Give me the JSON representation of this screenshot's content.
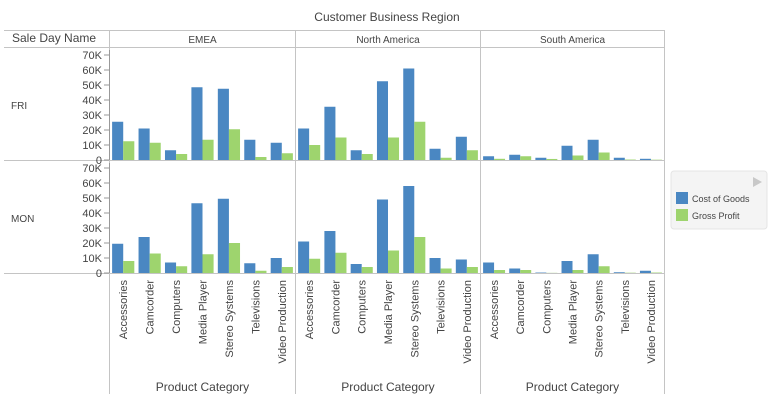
{
  "chart_data": {
    "type": "bar",
    "title": "Customer Business Region",
    "row_header": "Sale Day Name",
    "xlabel": "Product Category",
    "regions": [
      "EMEA",
      "North America",
      "South America"
    ],
    "days": [
      "FRI",
      "MON"
    ],
    "categories": [
      "Accessories",
      "Camcorder",
      "Computers",
      "Media Player",
      "Stereo Systems",
      "Televisions",
      "Video Production"
    ],
    "ylim": [
      0,
      70000
    ],
    "yticks": [
      0,
      10000,
      20000,
      30000,
      40000,
      50000,
      60000,
      70000
    ],
    "ytick_labels": [
      "0",
      "10K",
      "20K",
      "30K",
      "40K",
      "50K",
      "60K",
      "70K"
    ],
    "grid": false,
    "legend_position": "right",
    "series": [
      {
        "name": "Cost of Goods",
        "color": "#4a87c2",
        "values": {
          "EMEA": {
            "FRI": [
              25500,
              21000,
              6500,
              48500,
              47500,
              13500,
              11500
            ],
            "MON": [
              19500,
              24000,
              7000,
              46500,
              49500,
              6500,
              10000
            ]
          },
          "North America": {
            "FRI": [
              21000,
              35500,
              6500,
              52500,
              61000,
              7500,
              15500
            ],
            "MON": [
              21000,
              28000,
              6000,
              49000,
              58000,
              10000,
              9000
            ]
          },
          "South America": {
            "FRI": [
              2500,
              3500,
              1500,
              9500,
              13500,
              1500,
              800
            ],
            "MON": [
              7000,
              3000,
              300,
              8000,
              12500,
              500,
              1500
            ]
          }
        }
      },
      {
        "name": "Gross Profit",
        "color": "#9ed46e",
        "values": {
          "EMEA": {
            "FRI": [
              12500,
              11500,
              4000,
              13500,
              20500,
              2000,
              4500
            ],
            "MON": [
              8000,
              13000,
              4500,
              12500,
              20000,
              1500,
              4000
            ]
          },
          "North America": {
            "FRI": [
              10000,
              15000,
              4000,
              15000,
              25500,
              1500,
              6500
            ],
            "MON": [
              9500,
              13500,
              4000,
              15000,
              24000,
              3000,
              4000
            ]
          },
          "South America": {
            "FRI": [
              800,
              2500,
              700,
              3000,
              5000,
              300,
              200
            ],
            "MON": [
              2000,
              2000,
              100,
              2000,
              4500,
              200,
              300
            ]
          }
        }
      }
    ]
  }
}
